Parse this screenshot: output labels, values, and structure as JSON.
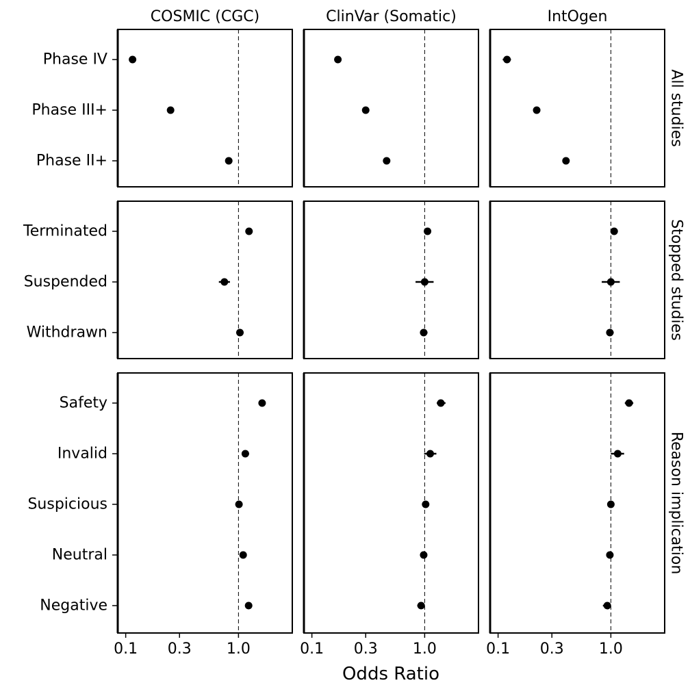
{
  "chart_data": {
    "type": "scatter",
    "subtype": "forest-plot-facet-grid",
    "xlabel": "Odds Ratio",
    "x_scale": "log",
    "xlim": [
      0.085,
      3.0
    ],
    "x_ticks": [
      0.1,
      0.3,
      1.0
    ],
    "x_tick_labels": [
      "0.1",
      "0.3",
      "1.0"
    ],
    "reference_line": 1.0,
    "columns": [
      "COSMIC (CGC)",
      "ClinVar (Somatic)",
      "IntOgen"
    ],
    "row_groups": [
      {
        "name": "All studies",
        "categories": [
          "Phase IV",
          "Phase III+",
          "Phase II+"
        ],
        "series": [
          {
            "column": "COSMIC (CGC)",
            "or": [
              0.115,
              0.25,
              0.82
            ],
            "lo": [
              0.11,
              0.24,
              0.8
            ],
            "hi": [
              0.12,
              0.26,
              0.84
            ]
          },
          {
            "column": "ClinVar (Somatic)",
            "or": [
              0.17,
              0.3,
              0.46
            ],
            "lo": [
              0.16,
              0.29,
              0.45
            ],
            "hi": [
              0.18,
              0.31,
              0.47
            ]
          },
          {
            "column": "IntOgen",
            "or": [
              0.12,
              0.22,
              0.4
            ],
            "lo": [
              0.11,
              0.21,
              0.39
            ],
            "hi": [
              0.13,
              0.23,
              0.41
            ]
          }
        ]
      },
      {
        "name": "Stopped studies",
        "categories": [
          "Terminated",
          "Suspended",
          "Withdrawn"
        ],
        "series": [
          {
            "column": "COSMIC (CGC)",
            "or": [
              1.24,
              0.75,
              1.03
            ],
            "lo": [
              1.21,
              0.67,
              1.0
            ],
            "hi": [
              1.27,
              0.84,
              1.06
            ]
          },
          {
            "column": "ClinVar (Somatic)",
            "or": [
              1.06,
              1.0,
              0.98
            ],
            "lo": [
              1.03,
              0.83,
              0.91
            ],
            "hi": [
              1.09,
              1.2,
              1.06
            ]
          },
          {
            "column": "IntOgen",
            "or": [
              1.07,
              1.0,
              0.98
            ],
            "lo": [
              1.04,
              0.83,
              0.91
            ],
            "hi": [
              1.1,
              1.2,
              1.06
            ]
          }
        ]
      },
      {
        "name": "Reason implication",
        "categories": [
          "Safety",
          "Invalid",
          "Suspicious",
          "Neutral",
          "Negative"
        ],
        "series": [
          {
            "column": "COSMIC (CGC)",
            "or": [
              1.62,
              1.15,
              1.01,
              1.1,
              1.23
            ],
            "lo": [
              1.55,
              1.08,
              0.98,
              1.07,
              1.19
            ],
            "hi": [
              1.7,
              1.24,
              1.04,
              1.13,
              1.27
            ]
          },
          {
            "column": "ClinVar (Somatic)",
            "or": [
              1.39,
              1.12,
              1.02,
              0.98,
              0.93
            ],
            "lo": [
              1.28,
              0.99,
              0.97,
              0.95,
              0.86
            ],
            "hi": [
              1.53,
              1.27,
              1.09,
              1.01,
              1.0
            ]
          },
          {
            "column": "IntOgen",
            "or": [
              1.45,
              1.15,
              1.0,
              0.98,
              0.93
            ],
            "lo": [
              1.33,
              1.0,
              0.95,
              0.95,
              0.85
            ],
            "hi": [
              1.58,
              1.31,
              1.06,
              1.01,
              1.0
            ]
          }
        ]
      }
    ],
    "colors": {
      "point": "#000000",
      "axis": "#000000",
      "reference_line": "#000000"
    }
  }
}
